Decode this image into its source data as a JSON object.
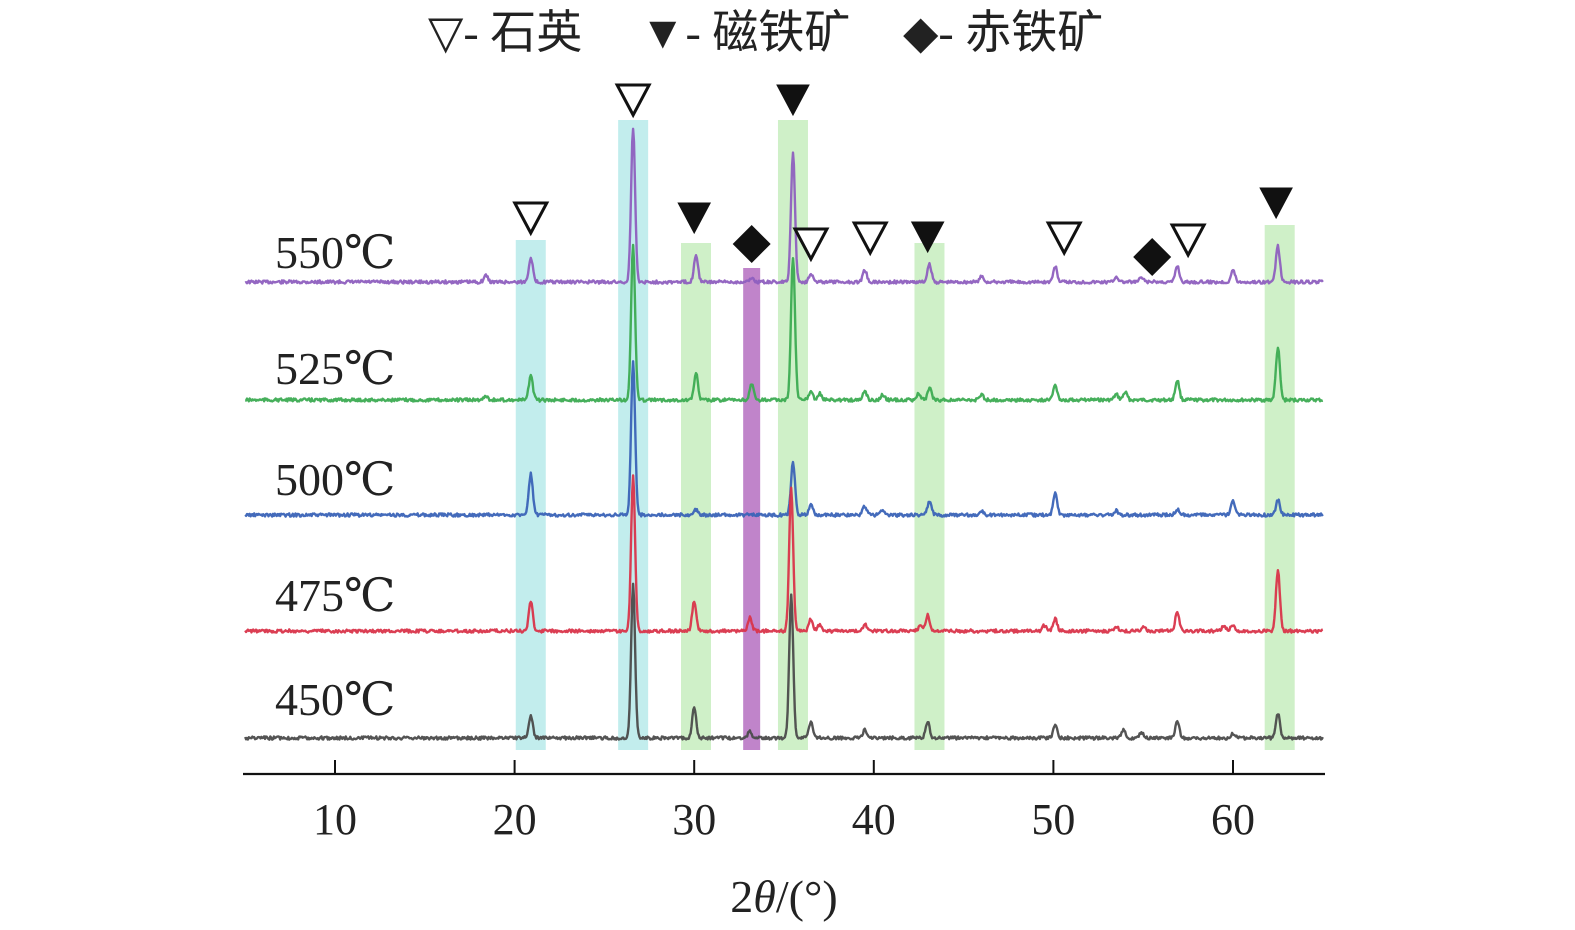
{
  "legend": {
    "items": [
      {
        "marker": "triangle-down-open",
        "label": "▽- 石英"
      },
      {
        "marker": "triangle-down-filled",
        "label": "▼- 磁铁矿"
      },
      {
        "marker": "diamond-filled",
        "label": "◆- 赤铁矿"
      }
    ]
  },
  "chart_data": {
    "type": "line",
    "xlabel_prefix": "2",
    "xlabel_theta": "θ",
    "xlabel_suffix": "/(°)",
    "ylabel": "",
    "xlim": [
      5,
      65
    ],
    "xticks": [
      10,
      20,
      30,
      40,
      50,
      60
    ],
    "xtick_labels": [
      "10",
      "20",
      "30",
      "40",
      "50",
      "60"
    ],
    "grid": false,
    "phases": [
      {
        "name": "石英",
        "symbol": "▽",
        "marker": "triangle-down-open"
      },
      {
        "name": "磁铁矿",
        "symbol": "▼",
        "marker": "triangle-down-filled"
      },
      {
        "name": "赤铁矿",
        "symbol": "◆",
        "marker": "diamond-filled"
      }
    ],
    "highlight_bands": [
      {
        "center": 20.9,
        "color": "#8fdede",
        "phase": "石英"
      },
      {
        "center": 26.6,
        "color": "#8fdede",
        "phase": "石英"
      },
      {
        "center": 30.1,
        "color": "#a8e39a",
        "phase": "磁铁矿"
      },
      {
        "center": 33.2,
        "color": "#b56ec1",
        "phase": "赤铁矿"
      },
      {
        "center": 35.5,
        "color": "#a8e39a",
        "phase": "磁铁矿"
      },
      {
        "center": 43.1,
        "color": "#a8e39a",
        "phase": "磁铁矿"
      },
      {
        "center": 62.6,
        "color": "#a8e39a",
        "phase": "磁铁矿"
      }
    ],
    "peak_markers": [
      {
        "x": 20.9,
        "marker": "triangle-down-open"
      },
      {
        "x": 26.6,
        "marker": "triangle-down-open"
      },
      {
        "x": 30.0,
        "marker": "triangle-down-filled"
      },
      {
        "x": 33.2,
        "marker": "diamond-filled"
      },
      {
        "x": 35.5,
        "marker": "triangle-down-filled"
      },
      {
        "x": 36.5,
        "marker": "triangle-down-open"
      },
      {
        "x": 39.8,
        "marker": "triangle-down-open"
      },
      {
        "x": 43.0,
        "marker": "triangle-down-filled"
      },
      {
        "x": 50.6,
        "marker": "triangle-down-open"
      },
      {
        "x": 55.5,
        "marker": "diamond-filled"
      },
      {
        "x": 57.5,
        "marker": "triangle-down-open"
      },
      {
        "x": 62.4,
        "marker": "triangle-down-filled"
      }
    ],
    "series": [
      {
        "name": "550℃",
        "color": "#8e5fbf",
        "peaks": [
          [
            18.4,
            0.12
          ],
          [
            20.9,
            0.45
          ],
          [
            26.6,
            2.8
          ],
          [
            30.1,
            0.5
          ],
          [
            33.2,
            0.08
          ],
          [
            35.5,
            2.35
          ],
          [
            36.5,
            0.16
          ],
          [
            39.5,
            0.22
          ],
          [
            43.1,
            0.32
          ],
          [
            46.0,
            0.1
          ],
          [
            50.1,
            0.28
          ],
          [
            53.5,
            0.1
          ],
          [
            54.9,
            0.08
          ],
          [
            56.9,
            0.3
          ],
          [
            60.0,
            0.22
          ],
          [
            62.5,
            0.65
          ]
        ]
      },
      {
        "name": "525℃",
        "color": "#3cab52",
        "peaks": [
          [
            18.4,
            0.08
          ],
          [
            20.9,
            0.45
          ],
          [
            26.6,
            2.8
          ],
          [
            30.1,
            0.48
          ],
          [
            33.2,
            0.28
          ],
          [
            35.5,
            2.6
          ],
          [
            36.5,
            0.16
          ],
          [
            37.0,
            0.12
          ],
          [
            39.5,
            0.16
          ],
          [
            40.5,
            0.1
          ],
          [
            42.5,
            0.12
          ],
          [
            43.1,
            0.22
          ],
          [
            46.0,
            0.1
          ],
          [
            50.1,
            0.28
          ],
          [
            53.5,
            0.1
          ],
          [
            54.0,
            0.14
          ],
          [
            56.9,
            0.36
          ],
          [
            62.5,
            0.95
          ]
        ]
      },
      {
        "name": "500℃",
        "color": "#3a63b7",
        "peaks": [
          [
            20.9,
            0.75
          ],
          [
            26.6,
            2.8
          ],
          [
            30.1,
            0.1
          ],
          [
            35.5,
            0.95
          ],
          [
            36.5,
            0.18
          ],
          [
            39.5,
            0.16
          ],
          [
            40.5,
            0.08
          ],
          [
            43.1,
            0.25
          ],
          [
            46.0,
            0.08
          ],
          [
            50.1,
            0.4
          ],
          [
            53.5,
            0.08
          ],
          [
            56.9,
            0.1
          ],
          [
            60.0,
            0.25
          ],
          [
            62.5,
            0.28
          ]
        ]
      },
      {
        "name": "475℃",
        "color": "#d9344a",
        "peaks": [
          [
            20.9,
            0.55
          ],
          [
            26.6,
            2.8
          ],
          [
            30.0,
            0.55
          ],
          [
            33.1,
            0.25
          ],
          [
            35.4,
            2.6
          ],
          [
            36.5,
            0.22
          ],
          [
            37.0,
            0.12
          ],
          [
            39.5,
            0.12
          ],
          [
            42.6,
            0.1
          ],
          [
            43.0,
            0.3
          ],
          [
            49.5,
            0.1
          ],
          [
            50.1,
            0.22
          ],
          [
            53.5,
            0.08
          ],
          [
            55.0,
            0.08
          ],
          [
            56.9,
            0.36
          ],
          [
            59.5,
            0.1
          ],
          [
            60.0,
            0.12
          ],
          [
            62.5,
            1.1
          ]
        ]
      },
      {
        "name": "450℃",
        "color": "#4b4b4b",
        "peaks": [
          [
            20.9,
            0.42
          ],
          [
            26.6,
            2.8
          ],
          [
            30.0,
            0.55
          ],
          [
            33.1,
            0.12
          ],
          [
            35.4,
            2.6
          ],
          [
            36.5,
            0.3
          ],
          [
            39.5,
            0.14
          ],
          [
            43.0,
            0.3
          ],
          [
            50.1,
            0.26
          ],
          [
            53.9,
            0.14
          ],
          [
            54.9,
            0.1
          ],
          [
            56.9,
            0.32
          ],
          [
            60.0,
            0.08
          ],
          [
            62.5,
            0.45
          ]
        ]
      }
    ]
  }
}
